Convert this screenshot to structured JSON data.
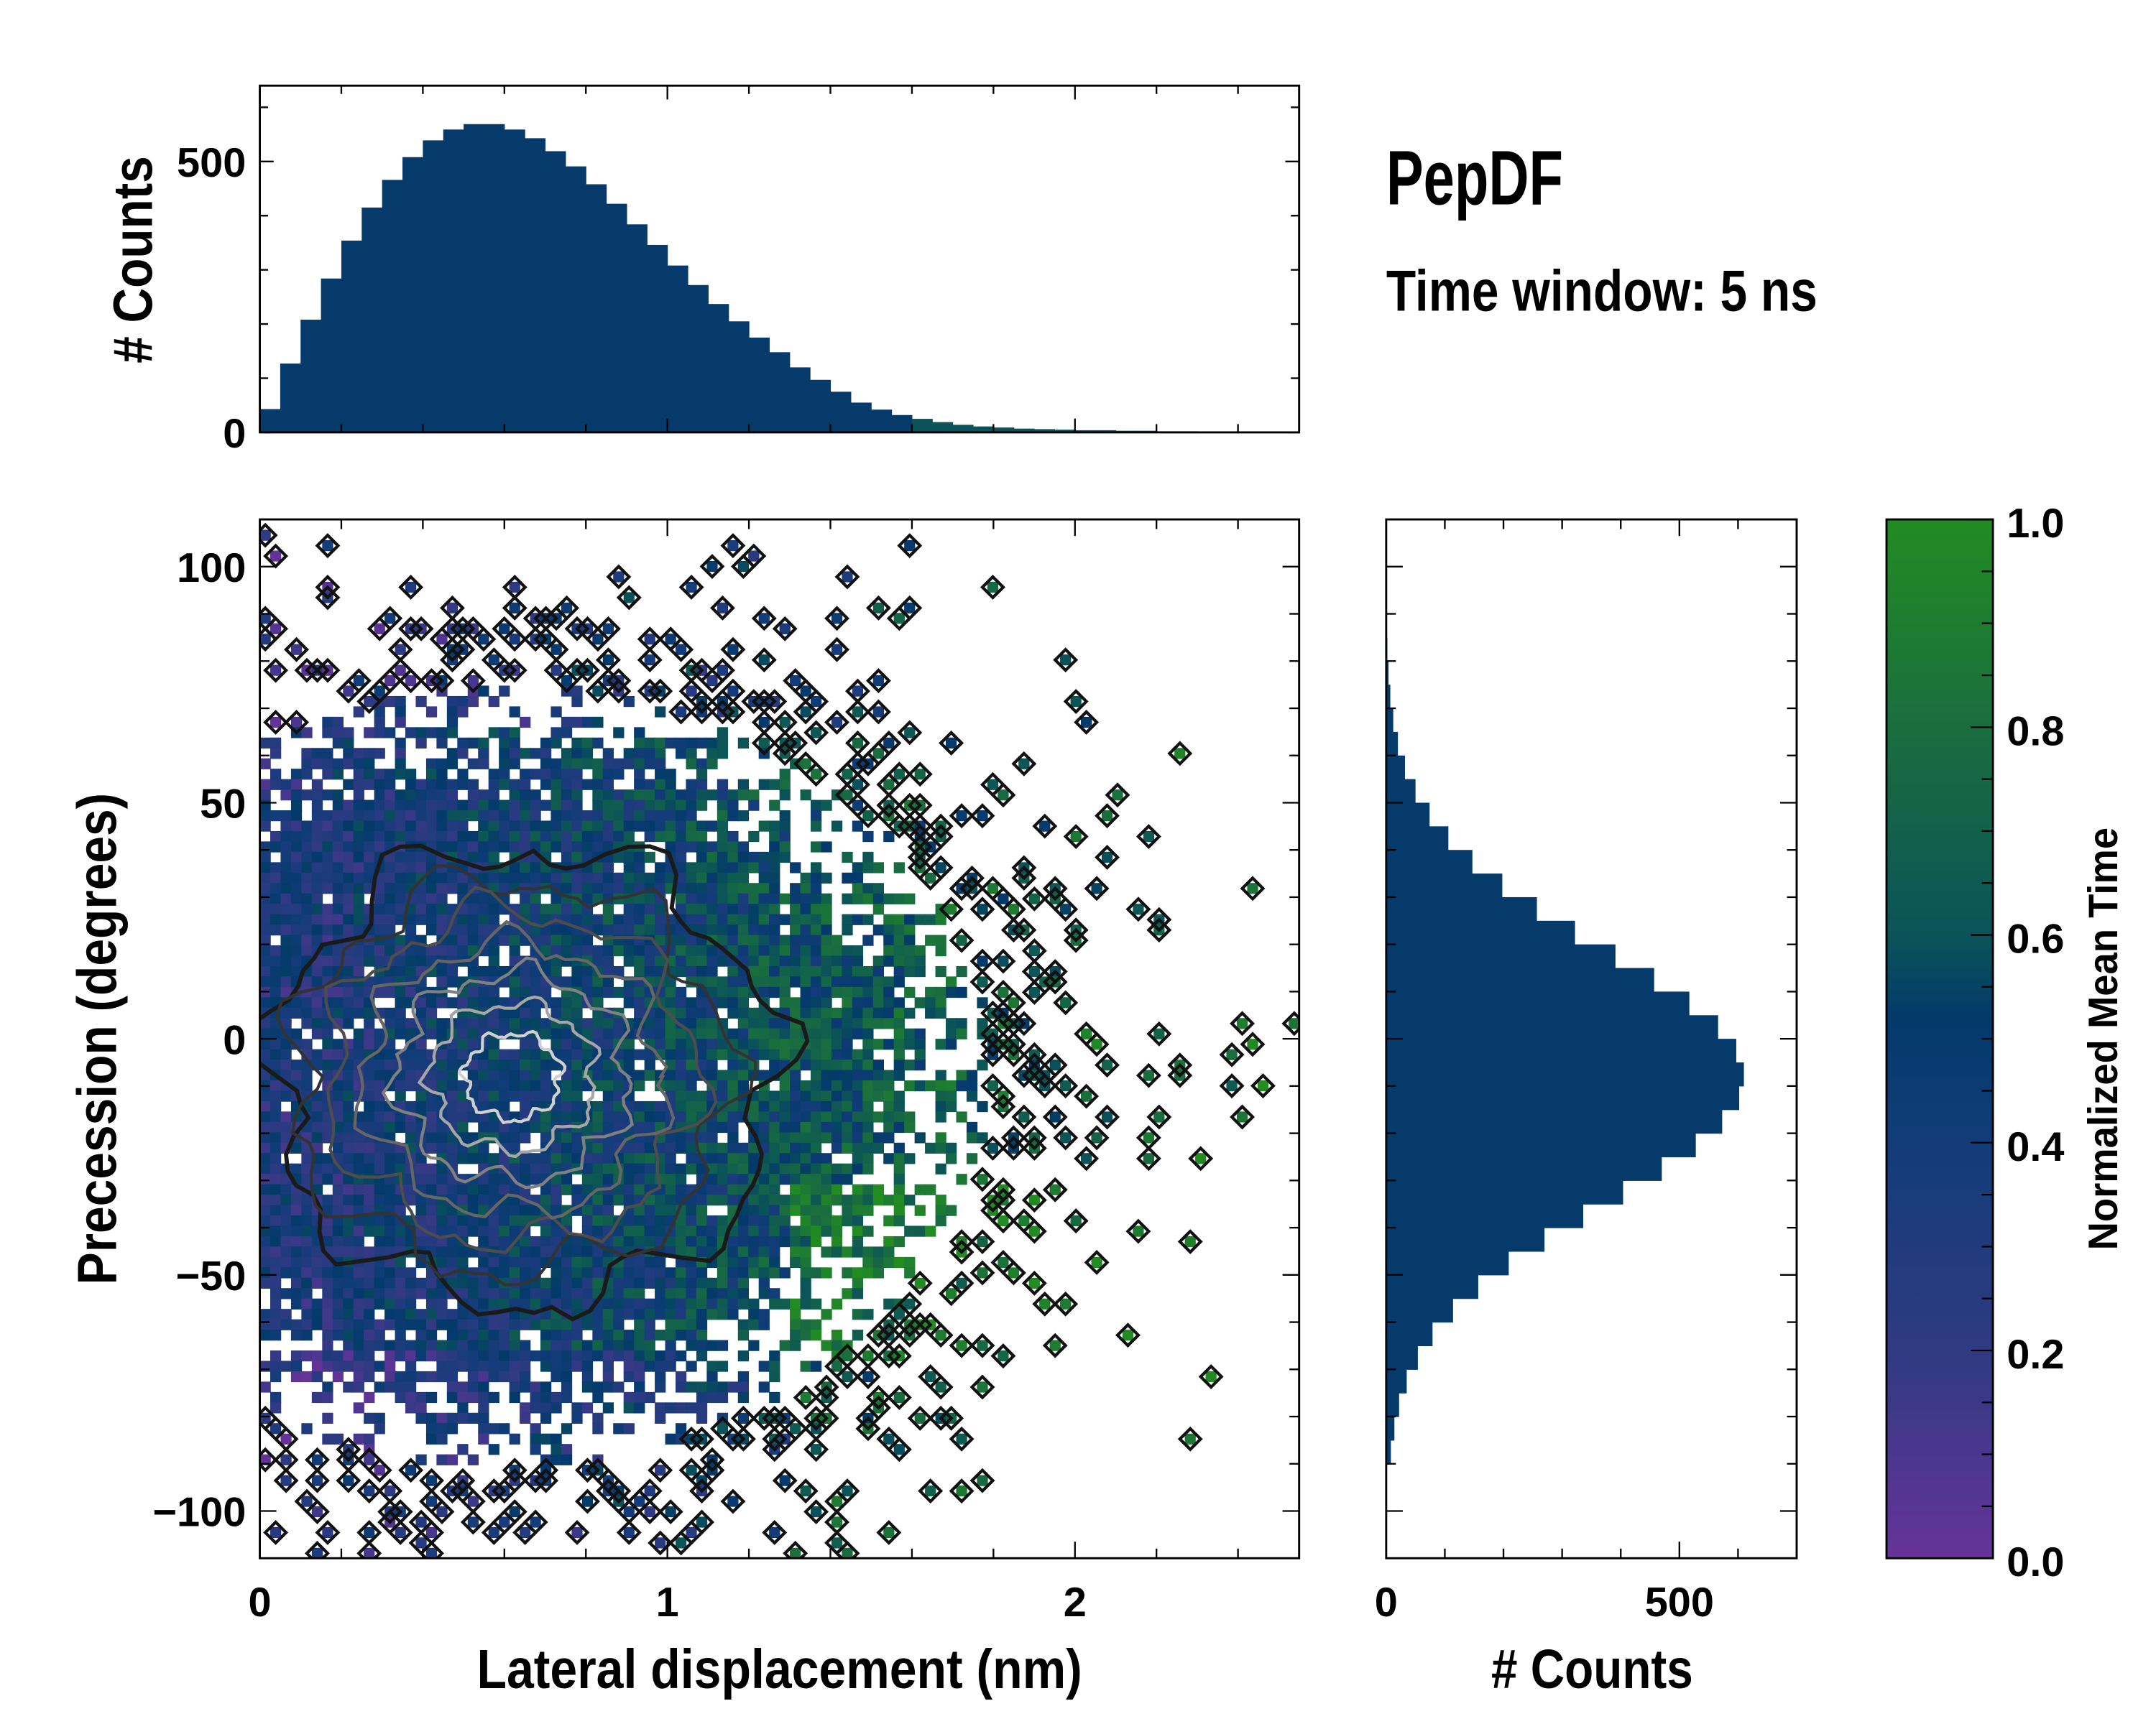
{
  "chart_data": [
    {
      "type": "bar",
      "id": "top-histogram",
      "ylabel": "# Counts",
      "xlim": [
        0,
        2.55
      ],
      "ylim": [
        0,
        640
      ],
      "yticks": [
        "0",
        "500"
      ],
      "yticks_values": [
        0,
        500
      ],
      "bin_width": 0.05,
      "x": [
        0.025,
        0.075,
        0.125,
        0.175,
        0.225,
        0.275,
        0.325,
        0.375,
        0.425,
        0.475,
        0.525,
        0.575,
        0.625,
        0.675,
        0.725,
        0.775,
        0.825,
        0.875,
        0.925,
        0.975,
        1.025,
        1.075,
        1.125,
        1.175,
        1.225,
        1.275,
        1.325,
        1.375,
        1.425,
        1.475,
        1.525,
        1.575,
        1.625,
        1.675,
        1.725,
        1.775,
        1.825,
        1.875,
        1.925,
        1.975,
        2.025,
        2.075,
        2.125,
        2.175,
        2.225,
        2.275,
        2.325,
        2.375,
        2.425,
        2.475,
        2.525
      ],
      "values": [
        43,
        127,
        208,
        284,
        354,
        415,
        466,
        508,
        539,
        559,
        569,
        569,
        559,
        543,
        519,
        491,
        458,
        422,
        384,
        346,
        308,
        272,
        237,
        205,
        175,
        148,
        120,
        97,
        75,
        55,
        42,
        32,
        25,
        19,
        14,
        11,
        9,
        7,
        6,
        5,
        4,
        4,
        3,
        3,
        2,
        2,
        1,
        1,
        1,
        0,
        0
      ]
    },
    {
      "type": "heatmap",
      "id": "main-2d-histogram",
      "title": "PepDF",
      "subtitle": "Time window: 5 ns",
      "xlabel": "Lateral displacement (nm)",
      "ylabel": "Precession (degrees)",
      "xlim": [
        0,
        2.55
      ],
      "ylim": [
        -110,
        110
      ],
      "xticks": [
        "0",
        "1",
        "2"
      ],
      "xticks_values": [
        0,
        1,
        2
      ],
      "yticks": [
        "100",
        "50",
        "0",
        "−50",
        "−100"
      ],
      "yticks_values": [
        100,
        50,
        0,
        -50,
        -100
      ],
      "density_center": [
        0.6,
        -8
      ],
      "density_spread": [
        0.55,
        38
      ],
      "color_trend": "greener at larger displacement and negative precession",
      "contour_center": [
        0.62,
        -8
      ],
      "contour_levels": 7
    },
    {
      "type": "bar",
      "id": "right-histogram",
      "orientation": "horizontal",
      "xlabel": "# Counts",
      "xlim": [
        0,
        700
      ],
      "xticks": [
        "0",
        "500"
      ],
      "xticks_values": [
        0,
        500
      ],
      "bin_width": 5,
      "y": [
        -87.5,
        -82.5,
        -77.5,
        -72.5,
        -67.5,
        -62.5,
        -57.5,
        -52.5,
        -47.5,
        -42.5,
        -37.5,
        -32.5,
        -27.5,
        -22.5,
        -17.5,
        -12.5,
        -7.5,
        -2.5,
        2.5,
        7.5,
        12.5,
        17.5,
        22.5,
        27.5,
        32.5,
        37.5,
        42.5,
        47.5,
        52.5,
        57.5,
        62.5,
        67.5,
        72.5,
        77.5,
        82.5,
        87.5
      ],
      "values": [
        8,
        14,
        22,
        35,
        54,
        79,
        114,
        157,
        209,
        270,
        336,
        404,
        470,
        528,
        573,
        602,
        610,
        597,
        566,
        517,
        457,
        391,
        322,
        257,
        198,
        147,
        106,
        74,
        50,
        32,
        20,
        12,
        7,
        4,
        2,
        1
      ]
    },
    {
      "type": "colorbar",
      "id": "colorbar",
      "label": "Normalized Mean Time",
      "range": [
        0,
        1
      ],
      "ticks": [
        "0.0",
        "0.2",
        "0.4",
        "0.6",
        "0.8",
        "1.0"
      ],
      "ticks_values": [
        0,
        0.2,
        0.4,
        0.6,
        0.8,
        1.0
      ],
      "colormap": [
        {
          "v": 0.0,
          "color": "#663399"
        },
        {
          "v": 0.2,
          "color": "#2f3a82"
        },
        {
          "v": 0.4,
          "color": "#123c78"
        },
        {
          "v": 0.52,
          "color": "#033a6a"
        },
        {
          "v": 0.6,
          "color": "#0b5358"
        },
        {
          "v": 0.8,
          "color": "#1a6e3e"
        },
        {
          "v": 1.0,
          "color": "#228b22"
        }
      ]
    }
  ],
  "colors": {
    "histogram_bar": "#063a6a"
  }
}
